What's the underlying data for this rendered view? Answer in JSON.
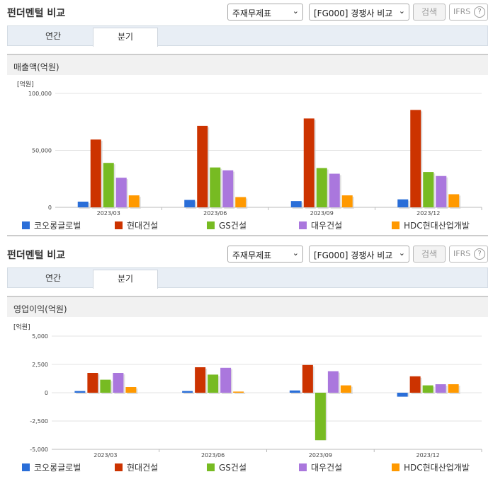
{
  "panels": [
    {
      "title": "펀더멘털 비교",
      "selects": [
        "주재무제표",
        "[FG000] 경쟁사 비교"
      ],
      "search_label": "검색",
      "ifrs_label": "IFRS",
      "ifrs_help": "?",
      "tabs": [
        "연간",
        "분기"
      ],
      "active_tab": 1,
      "subtitle": "매출액(억원)"
    },
    {
      "title": "펀더멘털 비교",
      "selects": [
        "주재무제표",
        "[FG000] 경쟁사 비교"
      ],
      "search_label": "검색",
      "ifrs_label": "IFRS",
      "ifrs_help": "?",
      "tabs": [
        "연간",
        "분기"
      ],
      "active_tab": 1,
      "subtitle": "영업이익(억원)"
    }
  ],
  "chart_data": [
    {
      "type": "bar",
      "unit_label": "[억원]",
      "categories": [
        "2023/03",
        "2023/06",
        "2023/09",
        "2023/12"
      ],
      "ylim": [
        0,
        100000
      ],
      "yticks": [
        "100,000",
        "50,000",
        "0"
      ],
      "ytick_values": [
        100000,
        50000,
        0
      ],
      "series": [
        {
          "name": "코오롱글로벌",
          "color": "#2a6ed8",
          "values": [
            5000,
            6500,
            5500,
            7000
          ]
        },
        {
          "name": "현대건설",
          "color": "#cc3300",
          "values": [
            59500,
            71500,
            78000,
            85500
          ]
        },
        {
          "name": "GS건설",
          "color": "#77bb22",
          "values": [
            39000,
            35000,
            34500,
            31000
          ]
        },
        {
          "name": "대우건설",
          "color": "#aa77dd",
          "values": [
            26000,
            32500,
            29500,
            27500
          ]
        },
        {
          "name": "HDC현대산업개발",
          "color": "#ff9900",
          "values": [
            10500,
            9000,
            10500,
            11500
          ]
        }
      ],
      "grid": true,
      "legend_position": "bottom"
    },
    {
      "type": "bar",
      "unit_label": "[억원]",
      "categories": [
        "2023/03",
        "2023/06",
        "2023/09",
        "2023/12"
      ],
      "ylim": [
        -5000,
        5000
      ],
      "yticks": [
        "5,000",
        "2,500",
        "0",
        "-2,500",
        "-5,000"
      ],
      "ytick_values": [
        5000,
        2500,
        0,
        -2500,
        -5000
      ],
      "series": [
        {
          "name": "코오롱글로벌",
          "color": "#2a6ed8",
          "values": [
            150,
            150,
            200,
            -350
          ]
        },
        {
          "name": "현대건설",
          "color": "#cc3300",
          "values": [
            1750,
            2250,
            2450,
            1450
          ]
        },
        {
          "name": "GS건설",
          "color": "#77bb22",
          "values": [
            1150,
            1600,
            -4200,
            650
          ]
        },
        {
          "name": "대우건설",
          "color": "#aa77dd",
          "values": [
            1750,
            2200,
            1900,
            750
          ]
        },
        {
          "name": "HDC현대산업개발",
          "color": "#ff9900",
          "values": [
            500,
            100,
            650,
            750
          ]
        }
      ],
      "grid": true,
      "legend_position": "bottom"
    }
  ]
}
